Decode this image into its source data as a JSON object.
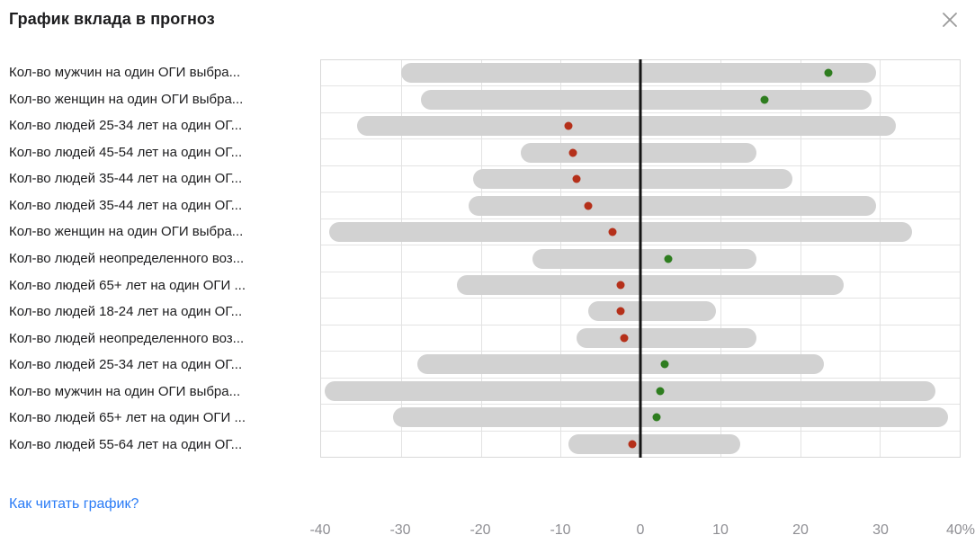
{
  "title": "График вклада в прогноз",
  "footer": {
    "link_label": "Как читать график?"
  },
  "colors": {
    "positive_dot": "#2e7d1f",
    "negative_dot": "#b5301a",
    "range_bar": "#d2d2d2",
    "zero_line": "#141414",
    "grid": "#e3e3e3",
    "axis_text": "#8e8e93",
    "link": "#2b7cf6"
  },
  "chart_data": {
    "type": "range-dot",
    "title": "График вклада в прогноз",
    "xlabel": "",
    "ylabel": "",
    "xlim": [
      -40,
      40
    ],
    "grid": true,
    "x_ticks": [
      {
        "value": -40,
        "label": "-40"
      },
      {
        "value": -30,
        "label": "-30"
      },
      {
        "value": -20,
        "label": "-20"
      },
      {
        "value": -10,
        "label": "-10"
      },
      {
        "value": 0,
        "label": "0"
      },
      {
        "value": 10,
        "label": "10"
      },
      {
        "value": 20,
        "label": "20"
      },
      {
        "value": 30,
        "label": "30"
      },
      {
        "value": 40,
        "label": "40%"
      }
    ],
    "gridline_values": [
      -30,
      -20,
      -10,
      10,
      20,
      30
    ],
    "rows": [
      {
        "label": "Кол-во мужчин на один ОГИ выбра...",
        "range": [
          -30,
          29.5
        ],
        "value": 23.5,
        "color": "green"
      },
      {
        "label": "Кол-во женщин на один ОГИ выбра...",
        "range": [
          -27.5,
          29
        ],
        "value": 15.5,
        "color": "green"
      },
      {
        "label": "Кол-во людей 25-34 лет на один ОГ...",
        "range": [
          -35.5,
          32
        ],
        "value": -9,
        "color": "red"
      },
      {
        "label": "Кол-во людей 45-54 лет на один ОГ...",
        "range": [
          -15,
          14.5
        ],
        "value": -8.5,
        "color": "red"
      },
      {
        "label": "Кол-во людей 35-44 лет на один ОГ...",
        "range": [
          -21,
          19
        ],
        "value": -8,
        "color": "red"
      },
      {
        "label": "Кол-во людей 35-44 лет на один ОГ...",
        "range": [
          -21.5,
          29.5
        ],
        "value": -6.5,
        "color": "red"
      },
      {
        "label": "Кол-во женщин на один ОГИ выбра...",
        "range": [
          -39,
          34
        ],
        "value": -3.5,
        "color": "red"
      },
      {
        "label": "Кол-во людей неопределенного воз...",
        "range": [
          -13.5,
          14.5
        ],
        "value": 3.5,
        "color": "green"
      },
      {
        "label": "Кол-во людей 65+ лет на один ОГИ ...",
        "range": [
          -23,
          25.5
        ],
        "value": -2.5,
        "color": "red"
      },
      {
        "label": "Кол-во людей 18-24 лет на один ОГ...",
        "range": [
          -6.5,
          9.5
        ],
        "value": -2.5,
        "color": "red"
      },
      {
        "label": "Кол-во людей неопределенного воз...",
        "range": [
          -8,
          14.5
        ],
        "value": -2,
        "color": "red"
      },
      {
        "label": "Кол-во людей 25-34 лет на один ОГ...",
        "range": [
          -28,
          23
        ],
        "value": 3,
        "color": "green"
      },
      {
        "label": "Кол-во мужчин на один ОГИ выбра...",
        "range": [
          -39.5,
          37
        ],
        "value": 2.5,
        "color": "green"
      },
      {
        "label": "Кол-во людей 65+ лет на один ОГИ ...",
        "range": [
          -31,
          38.5
        ],
        "value": 2,
        "color": "green"
      },
      {
        "label": "Кол-во людей 55-64 лет на один ОГ...",
        "range": [
          -9,
          12.5
        ],
        "value": -1,
        "color": "red"
      }
    ]
  }
}
